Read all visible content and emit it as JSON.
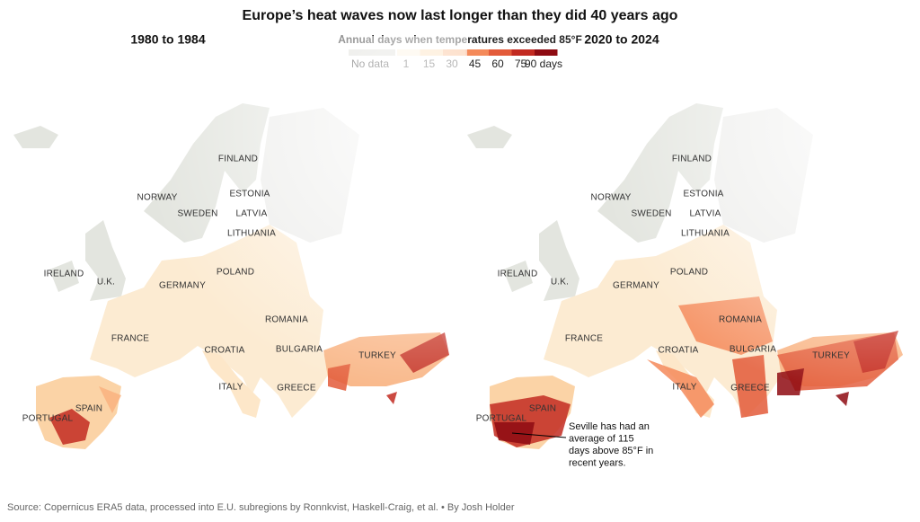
{
  "header": {
    "title": "Europe’s heat waves now last longer than they did 40 years ago"
  },
  "legend": {
    "title": "Annual days when temperatures exceeded 85°F",
    "no_data": "No data",
    "no_data_color": "#dcdcd6",
    "ticks": [
      "1",
      "15",
      "30",
      "45",
      "60",
      "75",
      "90 days"
    ],
    "colors": [
      "#fdf0dc",
      "#fcd9ad",
      "#f9b27f",
      "#f48a5a",
      "#e35b3a",
      "#c22a21",
      "#8e0b12"
    ]
  },
  "maps": [
    {
      "title": "1980 to 1984",
      "labels": [
        "FINLAND",
        "NORWAY",
        "ESTONIA",
        "SWEDEN",
        "LATVIA",
        "LITHUANIA",
        "IRELAND",
        "U.K.",
        "POLAND",
        "GERMANY",
        "ROMANIA",
        "FRANCE",
        "CROATIA",
        "BULGARIA",
        "TURKEY",
        "ITALY",
        "GREECE",
        "PORTUGAL",
        "SPAIN"
      ]
    },
    {
      "title": "2020 to 2024",
      "labels": [
        "FINLAND",
        "NORWAY",
        "ESTONIA",
        "SWEDEN",
        "LATVIA",
        "LITHUANIA",
        "IRELAND",
        "U.K.",
        "POLAND",
        "GERMANY",
        "ROMANIA",
        "FRANCE",
        "CROATIA",
        "BULGARIA",
        "TURKEY",
        "ITALY",
        "GREECE",
        "PORTUGAL",
        "SPAIN"
      ],
      "annotation": [
        "Seville has had an",
        "average of 115",
        "days above 85°F in",
        "recent years."
      ]
    }
  ],
  "source": "Source: Copernicus ERA5 data, processed into E.U. subregions by Ronnkvist, Haskell-Craig, et al.  •  By Josh Holder"
}
